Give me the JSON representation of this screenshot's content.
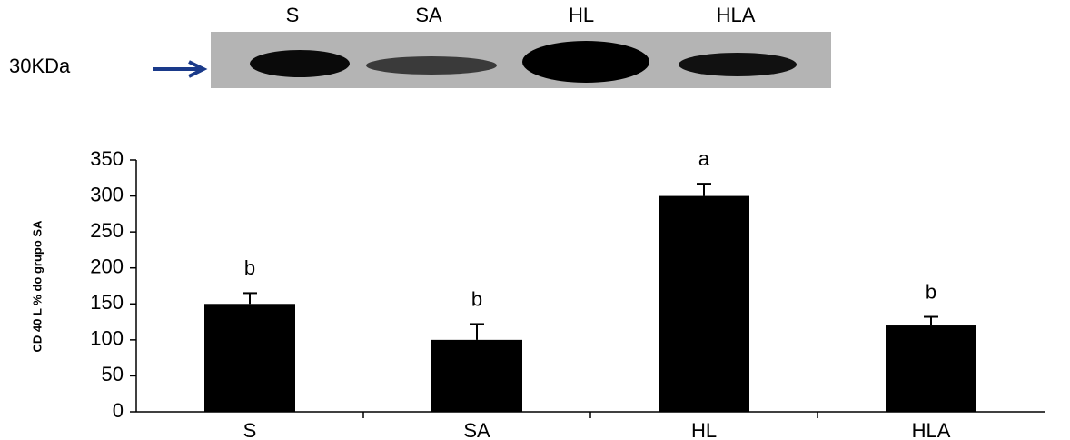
{
  "blot": {
    "lanes": [
      "S",
      "SA",
      "HL",
      "HLA"
    ],
    "marker": "30KDa"
  },
  "chart_data": {
    "type": "bar",
    "ylabel": "CD 40 L % do grupo SA",
    "categories": [
      "S",
      "SA",
      "HL",
      "HLA"
    ],
    "values": [
      150,
      100,
      300,
      120
    ],
    "errors": [
      15,
      22,
      17,
      12
    ],
    "annotations": [
      "b",
      "b",
      "a",
      "b"
    ],
    "color": "#000000",
    "ylim": [
      0,
      350
    ],
    "yticks": [
      0,
      50,
      100,
      150,
      200,
      250,
      300,
      350
    ]
  }
}
